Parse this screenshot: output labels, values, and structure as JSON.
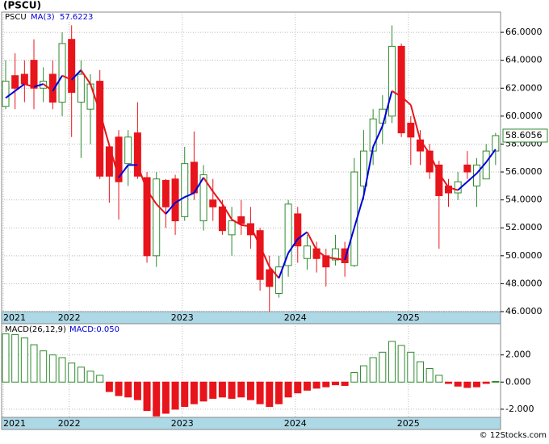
{
  "chart_data": {
    "type": "candlestick",
    "title": "(PSCU)",
    "symbol": "PSCU",
    "categories": [
      "2021",
      null,
      null,
      null,
      null,
      null,
      null,
      "2022",
      null,
      null,
      null,
      null,
      null,
      null,
      null,
      null,
      null,
      null,
      null,
      "2023",
      null,
      null,
      null,
      null,
      null,
      null,
      null,
      null,
      null,
      null,
      null,
      "2024",
      null,
      null,
      null,
      null,
      null,
      null,
      null,
      null,
      null,
      null,
      null,
      "2025",
      null,
      null,
      null,
      null,
      null,
      null,
      null,
      null,
      null
    ],
    "open": [
      60.7,
      62.9,
      63.0,
      64.0,
      62.0,
      63.0,
      61.0,
      65.5,
      61.0,
      60.5,
      62.5,
      57.8,
      58.5,
      56.6,
      58.8,
      55.6,
      50.0,
      55.4,
      55.5,
      52.8,
      56.7,
      52.5,
      54.0,
      53.5,
      51.5,
      52.8,
      52.3,
      51.8,
      49.0,
      47.3,
      49.3,
      53.0,
      49.8,
      50.5,
      50.0,
      49.7,
      50.5,
      49.3,
      55.0,
      57.5,
      59.5,
      60.0,
      65.0,
      59.5,
      58.3,
      57.5,
      56.5,
      55.0,
      54.5,
      56.5,
      55.0,
      55.5,
      57.5
    ],
    "high": [
      64.0,
      64.5,
      64.0,
      65.5,
      63.5,
      64.0,
      66.0,
      66.5,
      64.0,
      63.0,
      63.3,
      58.0,
      59.0,
      59.0,
      61.0,
      56.0,
      56.0,
      55.5,
      55.8,
      57.8,
      58.9,
      56.5,
      55.5,
      54.0,
      53.5,
      54.0,
      53.5,
      52.0,
      50.0,
      50.0,
      54.0,
      53.5,
      51.5,
      51.0,
      50.5,
      51.5,
      51.0,
      57.0,
      59.0,
      60.5,
      61.5,
      66.5,
      65.2,
      60.0,
      59.0,
      58.0,
      56.8,
      55.5,
      56.0,
      57.5,
      57.0,
      58.0,
      58.8
    ],
    "low": [
      60.5,
      60.5,
      61.0,
      60.5,
      61.0,
      60.5,
      60.0,
      58.5,
      57.0,
      58.0,
      55.5,
      53.8,
      52.6,
      55.0,
      55.5,
      49.5,
      49.2,
      52.0,
      51.5,
      52.5,
      54.0,
      51.8,
      52.5,
      51.5,
      50.0,
      51.5,
      50.5,
      47.5,
      46.0,
      47.0,
      48.5,
      49.5,
      49.0,
      48.8,
      47.8,
      49.3,
      48.5,
      49.2,
      54.0,
      56.5,
      58.0,
      59.5,
      58.5,
      56.5,
      56.5,
      55.5,
      50.5,
      53.5,
      54.0,
      55.5,
      53.5,
      55.5,
      56.5
    ],
    "close": [
      62.5,
      62.0,
      62.3,
      62.0,
      62.5,
      61.0,
      65.2,
      61.7,
      63.0,
      62.3,
      55.7,
      55.7,
      55.3,
      58.5,
      55.7,
      50.0,
      55.5,
      53.5,
      52.5,
      56.6,
      54.5,
      55.8,
      53.5,
      51.8,
      52.5,
      52.3,
      51.5,
      48.3,
      47.8,
      49.2,
      53.7,
      50.7,
      50.7,
      49.8,
      49.2,
      50.5,
      49.5,
      56.0,
      57.5,
      59.8,
      60.5,
      65.0,
      58.8,
      58.5,
      57.5,
      56.0,
      54.3,
      54.5,
      55.3,
      56.0,
      56.5,
      57.5,
      58.6056
    ],
    "up_color": "#2e8b2e",
    "down_color": "#e8141b",
    "ma": {
      "name": "MA(3)",
      "up_color": "#0000dd",
      "down_color": "#e8141b",
      "values": [
        61.3,
        61.8,
        62.3,
        62.1,
        62.3,
        61.8,
        62.9,
        62.6,
        63.3,
        62.3,
        60.3,
        57.9,
        55.6,
        56.5,
        56.5,
        54.7,
        53.7,
        53.0,
        53.8,
        54.2,
        54.5,
        55.6,
        54.6,
        53.7,
        52.6,
        52.2,
        52.1,
        50.7,
        49.2,
        48.4,
        50.2,
        51.2,
        51.7,
        50.4,
        49.9,
        49.8,
        49.7,
        52.0,
        54.3,
        57.8,
        59.3,
        61.8,
        61.4,
        60.8,
        58.3,
        57.3,
        55.9,
        54.9,
        54.7,
        55.3,
        55.9,
        56.7,
        57.6223
      ]
    },
    "ylim": [
      46,
      67.45
    ],
    "yticks": [
      {
        "value": 46,
        "label": "46.0000"
      },
      {
        "value": 48,
        "label": "48.0000"
      },
      {
        "value": 50,
        "label": "50.0000"
      },
      {
        "value": 52,
        "label": "52.0000"
      },
      {
        "value": 54,
        "label": "54.0000"
      },
      {
        "value": 56,
        "label": "56.0000"
      },
      {
        "value": 58,
        "label": "58.0000"
      },
      {
        "value": 60,
        "label": "60.0000"
      },
      {
        "value": 62,
        "label": "62.0000"
      },
      {
        "value": 64,
        "label": "64.0000"
      },
      {
        "value": 66,
        "label": "66.0000"
      }
    ],
    "grid": true,
    "macd": {
      "type": "bar",
      "name": "MACD(26,12,9)",
      "label": "MACD:0.050",
      "values": [
        3.55,
        3.5,
        3.25,
        2.75,
        2.3,
        2.0,
        1.8,
        1.4,
        1.1,
        0.8,
        0.5,
        -0.7,
        -1.0,
        -1.1,
        -1.3,
        -2.1,
        -2.5,
        -2.3,
        -2.0,
        -1.8,
        -1.6,
        -1.4,
        -1.2,
        -1.1,
        -1.2,
        -1.1,
        -1.3,
        -1.6,
        -1.8,
        -1.6,
        -1.1,
        -0.8,
        -0.6,
        -0.45,
        -0.35,
        -0.2,
        -0.25,
        0.7,
        1.2,
        1.8,
        2.2,
        3.0,
        2.7,
        2.2,
        1.5,
        1.0,
        0.5,
        -0.1,
        -0.3,
        -0.4,
        -0.35,
        -0.1,
        0.05
      ],
      "ylim": [
        -2.6,
        4.3
      ],
      "yticks": [
        {
          "value": -2,
          "label": "-2.000"
        },
        {
          "value": 0,
          "label": "0.000"
        },
        {
          "value": 2,
          "label": "2.000"
        }
      ]
    },
    "footer": "© 12Stocks.com"
  }
}
